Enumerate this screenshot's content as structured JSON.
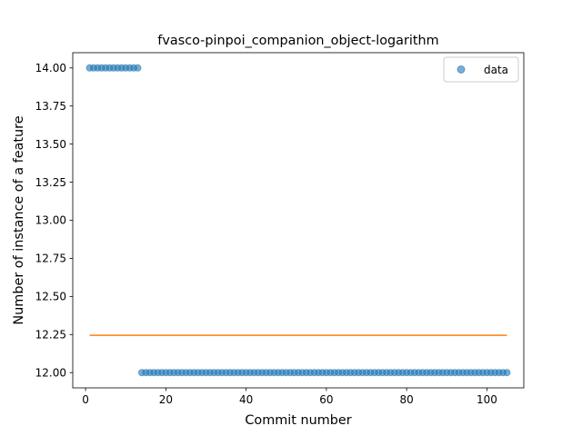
{
  "chart_data": {
    "type": "scatter",
    "title": "fvasco-pinpoi_companion_object-logarithm",
    "xlabel": "Commit number",
    "ylabel": "Number of instance of a feature",
    "xlim": [
      -3.2,
      109.2
    ],
    "ylim": [
      11.9,
      14.1
    ],
    "xticks": [
      0,
      20,
      40,
      60,
      80,
      100
    ],
    "yticks": [
      12.0,
      12.25,
      12.5,
      12.75,
      13.0,
      13.25,
      13.5,
      13.75,
      14.0
    ],
    "xtick_labels": [
      "0",
      "20",
      "40",
      "60",
      "80",
      "100"
    ],
    "ytick_labels": [
      "12.00",
      "12.25",
      "12.50",
      "12.75",
      "13.00",
      "13.25",
      "13.50",
      "13.75",
      "14.00"
    ],
    "legend": {
      "position": "top-right",
      "entries": [
        "data"
      ]
    },
    "grid": false,
    "series": [
      {
        "name": "data",
        "kind": "scatter",
        "color": "#1f77b4",
        "segments": [
          {
            "x_start": 1,
            "x_end": 13,
            "y": 14.0
          },
          {
            "x_start": 14,
            "x_end": 105,
            "y": 12.0
          }
        ]
      },
      {
        "kind": "line",
        "color": "#ff7f0e",
        "x": [
          1,
          105
        ],
        "y": [
          12.245,
          12.245
        ]
      }
    ]
  }
}
